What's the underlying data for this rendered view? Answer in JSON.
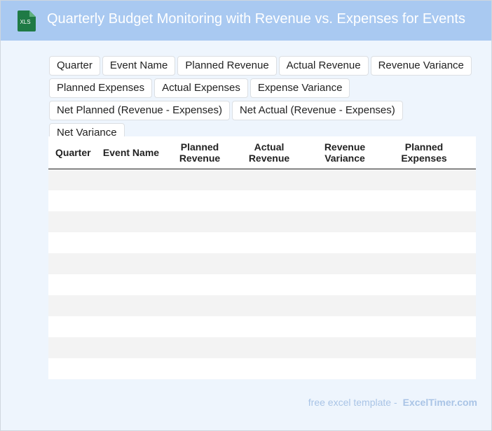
{
  "header": {
    "icon_label": "XLS",
    "title": "Quarterly Budget Monitoring with Revenue vs. Expenses for Events"
  },
  "chips": [
    "Quarter",
    "Event Name",
    "Planned Revenue",
    "Actual Revenue",
    "Revenue Variance",
    "Planned Expenses",
    "Actual Expenses",
    "Expense Variance",
    "Net Planned (Revenue - Expenses)",
    "Net Actual (Revenue - Expenses)",
    "Net Variance"
  ],
  "table": {
    "headers": [
      "Quarter",
      "Event Name",
      "Planned Revenue",
      "Actual Revenue",
      "Revenue Variance",
      "Planned Expenses"
    ]
  },
  "footer": {
    "text": "free excel template -",
    "brand": "ExcelTimer.com"
  }
}
